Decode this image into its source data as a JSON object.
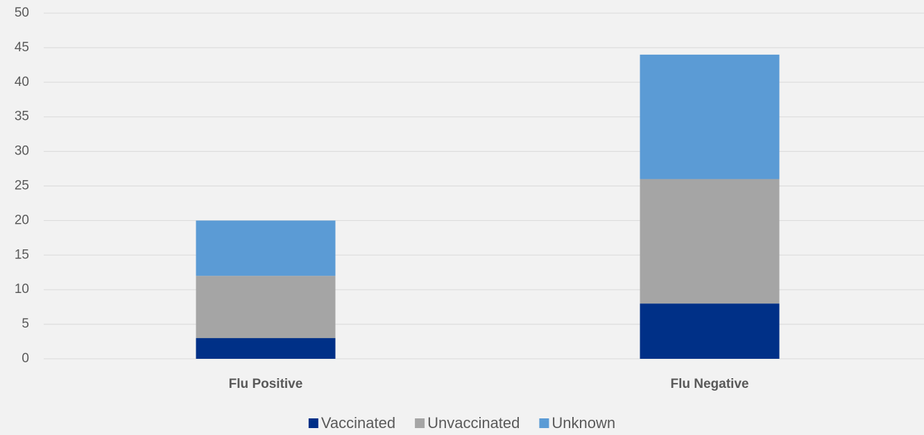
{
  "chart_data": {
    "type": "stacked_bar",
    "categories": [
      "Flu Positive",
      "Flu Negative"
    ],
    "series": [
      {
        "name": "Vaccinated",
        "color": "#003087",
        "values": [
          3,
          8
        ]
      },
      {
        "name": "Unvaccinated",
        "color": "#a5a5a5",
        "values": [
          9,
          18
        ]
      },
      {
        "name": "Unknown",
        "color": "#5b9bd5",
        "values": [
          8,
          18
        ]
      }
    ],
    "ylim": [
      0,
      50
    ],
    "yticks": [
      0,
      5,
      10,
      15,
      20,
      25,
      30,
      35,
      40,
      45,
      50
    ],
    "grid": true,
    "legend": "bottom"
  }
}
